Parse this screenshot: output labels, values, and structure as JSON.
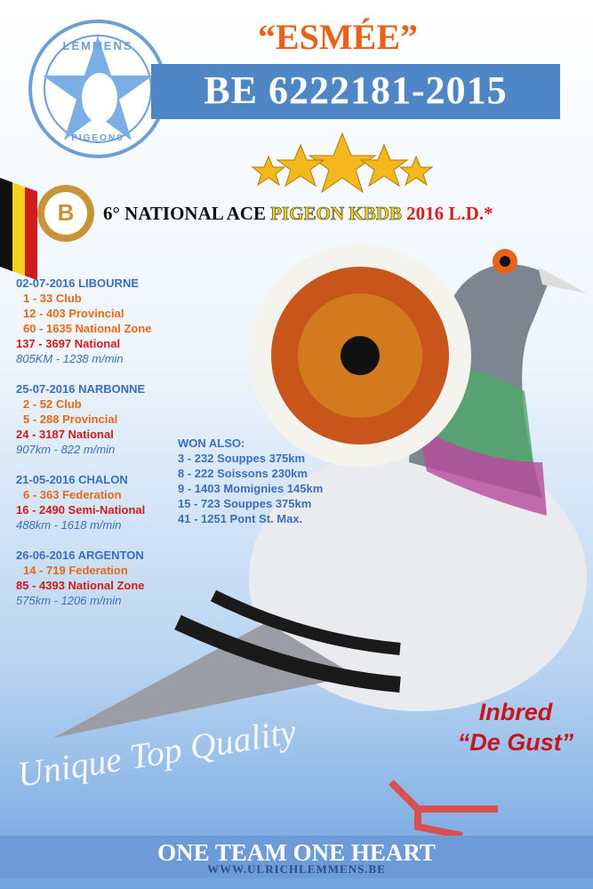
{
  "header": {
    "name": "“ESMÉE”",
    "ring": "BE 6222181-2015",
    "logo_top": "LEMMENS",
    "logo_bottom": "PIGEONS",
    "badge": "B"
  },
  "award": {
    "parts": [
      {
        "text": "6° NATIONAL ACE ",
        "style": "plain"
      },
      {
        "text": "PIGEON KBDB ",
        "style": "yellow"
      },
      {
        "text": "2016 L.D.*",
        "style": "red"
      }
    ]
  },
  "results": [
    {
      "race": "02-07-2016 LIBOURNE",
      "lines": [
        {
          "text": "1 - 33 Club",
          "color": "orange"
        },
        {
          "text": "12 - 403 Provincial",
          "color": "orange"
        },
        {
          "text": "60 - 1635 National Zone",
          "color": "orange"
        },
        {
          "text": "137 - 3697 National",
          "color": "red"
        }
      ],
      "speed": "805KM - 1238 m/min"
    },
    {
      "race": "25-07-2016 NARBONNE",
      "lines": [
        {
          "text": "2 - 52 Club",
          "color": "orange"
        },
        {
          "text": "5 - 288 Provincial",
          "color": "orange"
        },
        {
          "text": "24 - 3187 National",
          "color": "red"
        }
      ],
      "speed": "907km - 822 m/min"
    },
    {
      "race": "21-05-2016 CHALON",
      "lines": [
        {
          "text": "6 - 363 Federation",
          "color": "orange"
        },
        {
          "text": "16 - 2490 Semi-National",
          "color": "red"
        }
      ],
      "speed": "488km - 1618 m/min"
    },
    {
      "race": "26-06-2016 ARGENTON",
      "lines": [
        {
          "text": "14 - 719 Federation",
          "color": "orange"
        },
        {
          "text": "85 - 4393 National Zone",
          "color": "red"
        }
      ],
      "speed": "575km - 1206 m/min"
    }
  ],
  "won_also": {
    "title": "WON ALSO:",
    "lines": [
      "3 - 232 Souppes 375km",
      "8 - 222 Soissons 230km",
      "9 - 1403 Momignies 145km",
      "15 - 723 Souppes 375km",
      "41 - 1251 Pont St. Max."
    ]
  },
  "pedigree": {
    "line1": "Inbred",
    "line2": "“De Gust”"
  },
  "slogan": "Unique Top Quality",
  "footer": {
    "motto": "ONE TEAM ONE HEART",
    "website": "WWW.ULRICHLEMMENS.BE"
  }
}
